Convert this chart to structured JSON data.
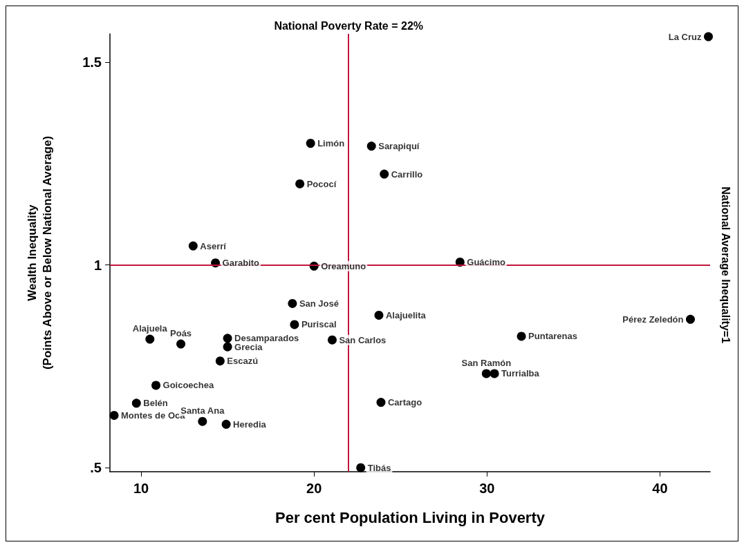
{
  "chart_data": {
    "type": "scatter",
    "xlabel": "Per cent Population Living in Poverty",
    "ylabel": "Wealth Inequality\n(Points Above or Below National Average)",
    "series": [
      {
        "color": "#000000",
        "x": [
          42.8,
          19.8,
          23.32,
          24.06,
          19.18,
          13.01,
          14.3,
          20.0,
          28.44,
          18.75,
          18.87,
          23.75,
          41.76,
          31.99,
          10.51,
          12.3,
          15.0,
          15.0,
          21.05,
          14.57,
          30.43,
          29.96,
          10.86,
          9.73,
          23.87,
          8.44,
          13.55,
          14.92,
          22.7
        ],
        "values": [
          1.563,
          1.3,
          1.293,
          1.224,
          1.2,
          1.047,
          1.005,
          0.997,
          1.007,
          0.905,
          0.853,
          0.876,
          0.866,
          0.824,
          0.817,
          0.805,
          0.819,
          0.798,
          0.815,
          0.763,
          0.732,
          0.732,
          0.703,
          0.659,
          0.661,
          0.629,
          0.614,
          0.607,
          0.5
        ]
      }
    ],
    "annotations": [
      {
        "text": "La Cruz",
        "x": 42.8,
        "y": 1.563
      },
      {
        "text": "Limón",
        "x": 19.8,
        "y": 1.3
      },
      {
        "text": "Sarapiquí",
        "x": 23.32,
        "y": 1.293
      },
      {
        "text": "Carrillo",
        "x": 24.06,
        "y": 1.224
      },
      {
        "text": "Pococí",
        "x": 19.18,
        "y": 1.2
      },
      {
        "text": "Aserrí",
        "x": 13.01,
        "y": 1.047
      },
      {
        "text": "Garabito",
        "x": 14.3,
        "y": 1.005
      },
      {
        "text": "Oreamuno",
        "x": 20.0,
        "y": 0.997
      },
      {
        "text": "Guácimo",
        "x": 28.44,
        "y": 1.007
      },
      {
        "text": "San José",
        "x": 18.75,
        "y": 0.905
      },
      {
        "text": "Puriscal",
        "x": 18.87,
        "y": 0.853
      },
      {
        "text": "Alajuelita",
        "x": 23.75,
        "y": 0.876
      },
      {
        "text": "Pérez Zeledón",
        "x": 41.76,
        "y": 0.866
      },
      {
        "text": "Puntarenas",
        "x": 31.99,
        "y": 0.824
      },
      {
        "text": "Alajuela",
        "x": 10.51,
        "y": 0.817
      },
      {
        "text": "Poás",
        "x": 12.3,
        "y": 0.805
      },
      {
        "text": "Desamparados",
        "x": 15.0,
        "y": 0.819
      },
      {
        "text": "Grecia",
        "x": 15.0,
        "y": 0.798
      },
      {
        "text": "San Carlos",
        "x": 21.05,
        "y": 0.815
      },
      {
        "text": "Escazú",
        "x": 14.57,
        "y": 0.763
      },
      {
        "text": "Turrialba",
        "x": 30.43,
        "y": 0.732
      },
      {
        "text": "San Ramón",
        "x": 29.96,
        "y": 0.732
      },
      {
        "text": "Goicoechea",
        "x": 10.86,
        "y": 0.703
      },
      {
        "text": "Belén",
        "x": 9.73,
        "y": 0.659
      },
      {
        "text": "Cartago",
        "x": 23.87,
        "y": 0.661
      },
      {
        "text": "Montes de Oca",
        "x": 8.44,
        "y": 0.629
      },
      {
        "text": "Santa Ana",
        "x": 13.55,
        "y": 0.614
      },
      {
        "text": "Heredia",
        "x": 14.92,
        "y": 0.607
      },
      {
        "text": "Tibás",
        "x": 22.7,
        "y": 0.5
      }
    ],
    "ref_lines": [
      {
        "axis": "x",
        "value": 22,
        "label": "National Poverty Rate = 22%",
        "color": "#c0143c"
      },
      {
        "axis": "y",
        "value": 1,
        "label": "National Average Inequality=1",
        "color": "#c0143c"
      }
    ],
    "xlim": [
      8.2,
      42.9
    ],
    "ylim": [
      0.49,
      1.57
    ],
    "xticks": [
      10,
      20,
      30,
      40
    ],
    "yticks": [
      {
        "value": 0.5,
        "label": ".5"
      },
      1,
      1.5
    ],
    "marker": "circle",
    "grid": false
  }
}
